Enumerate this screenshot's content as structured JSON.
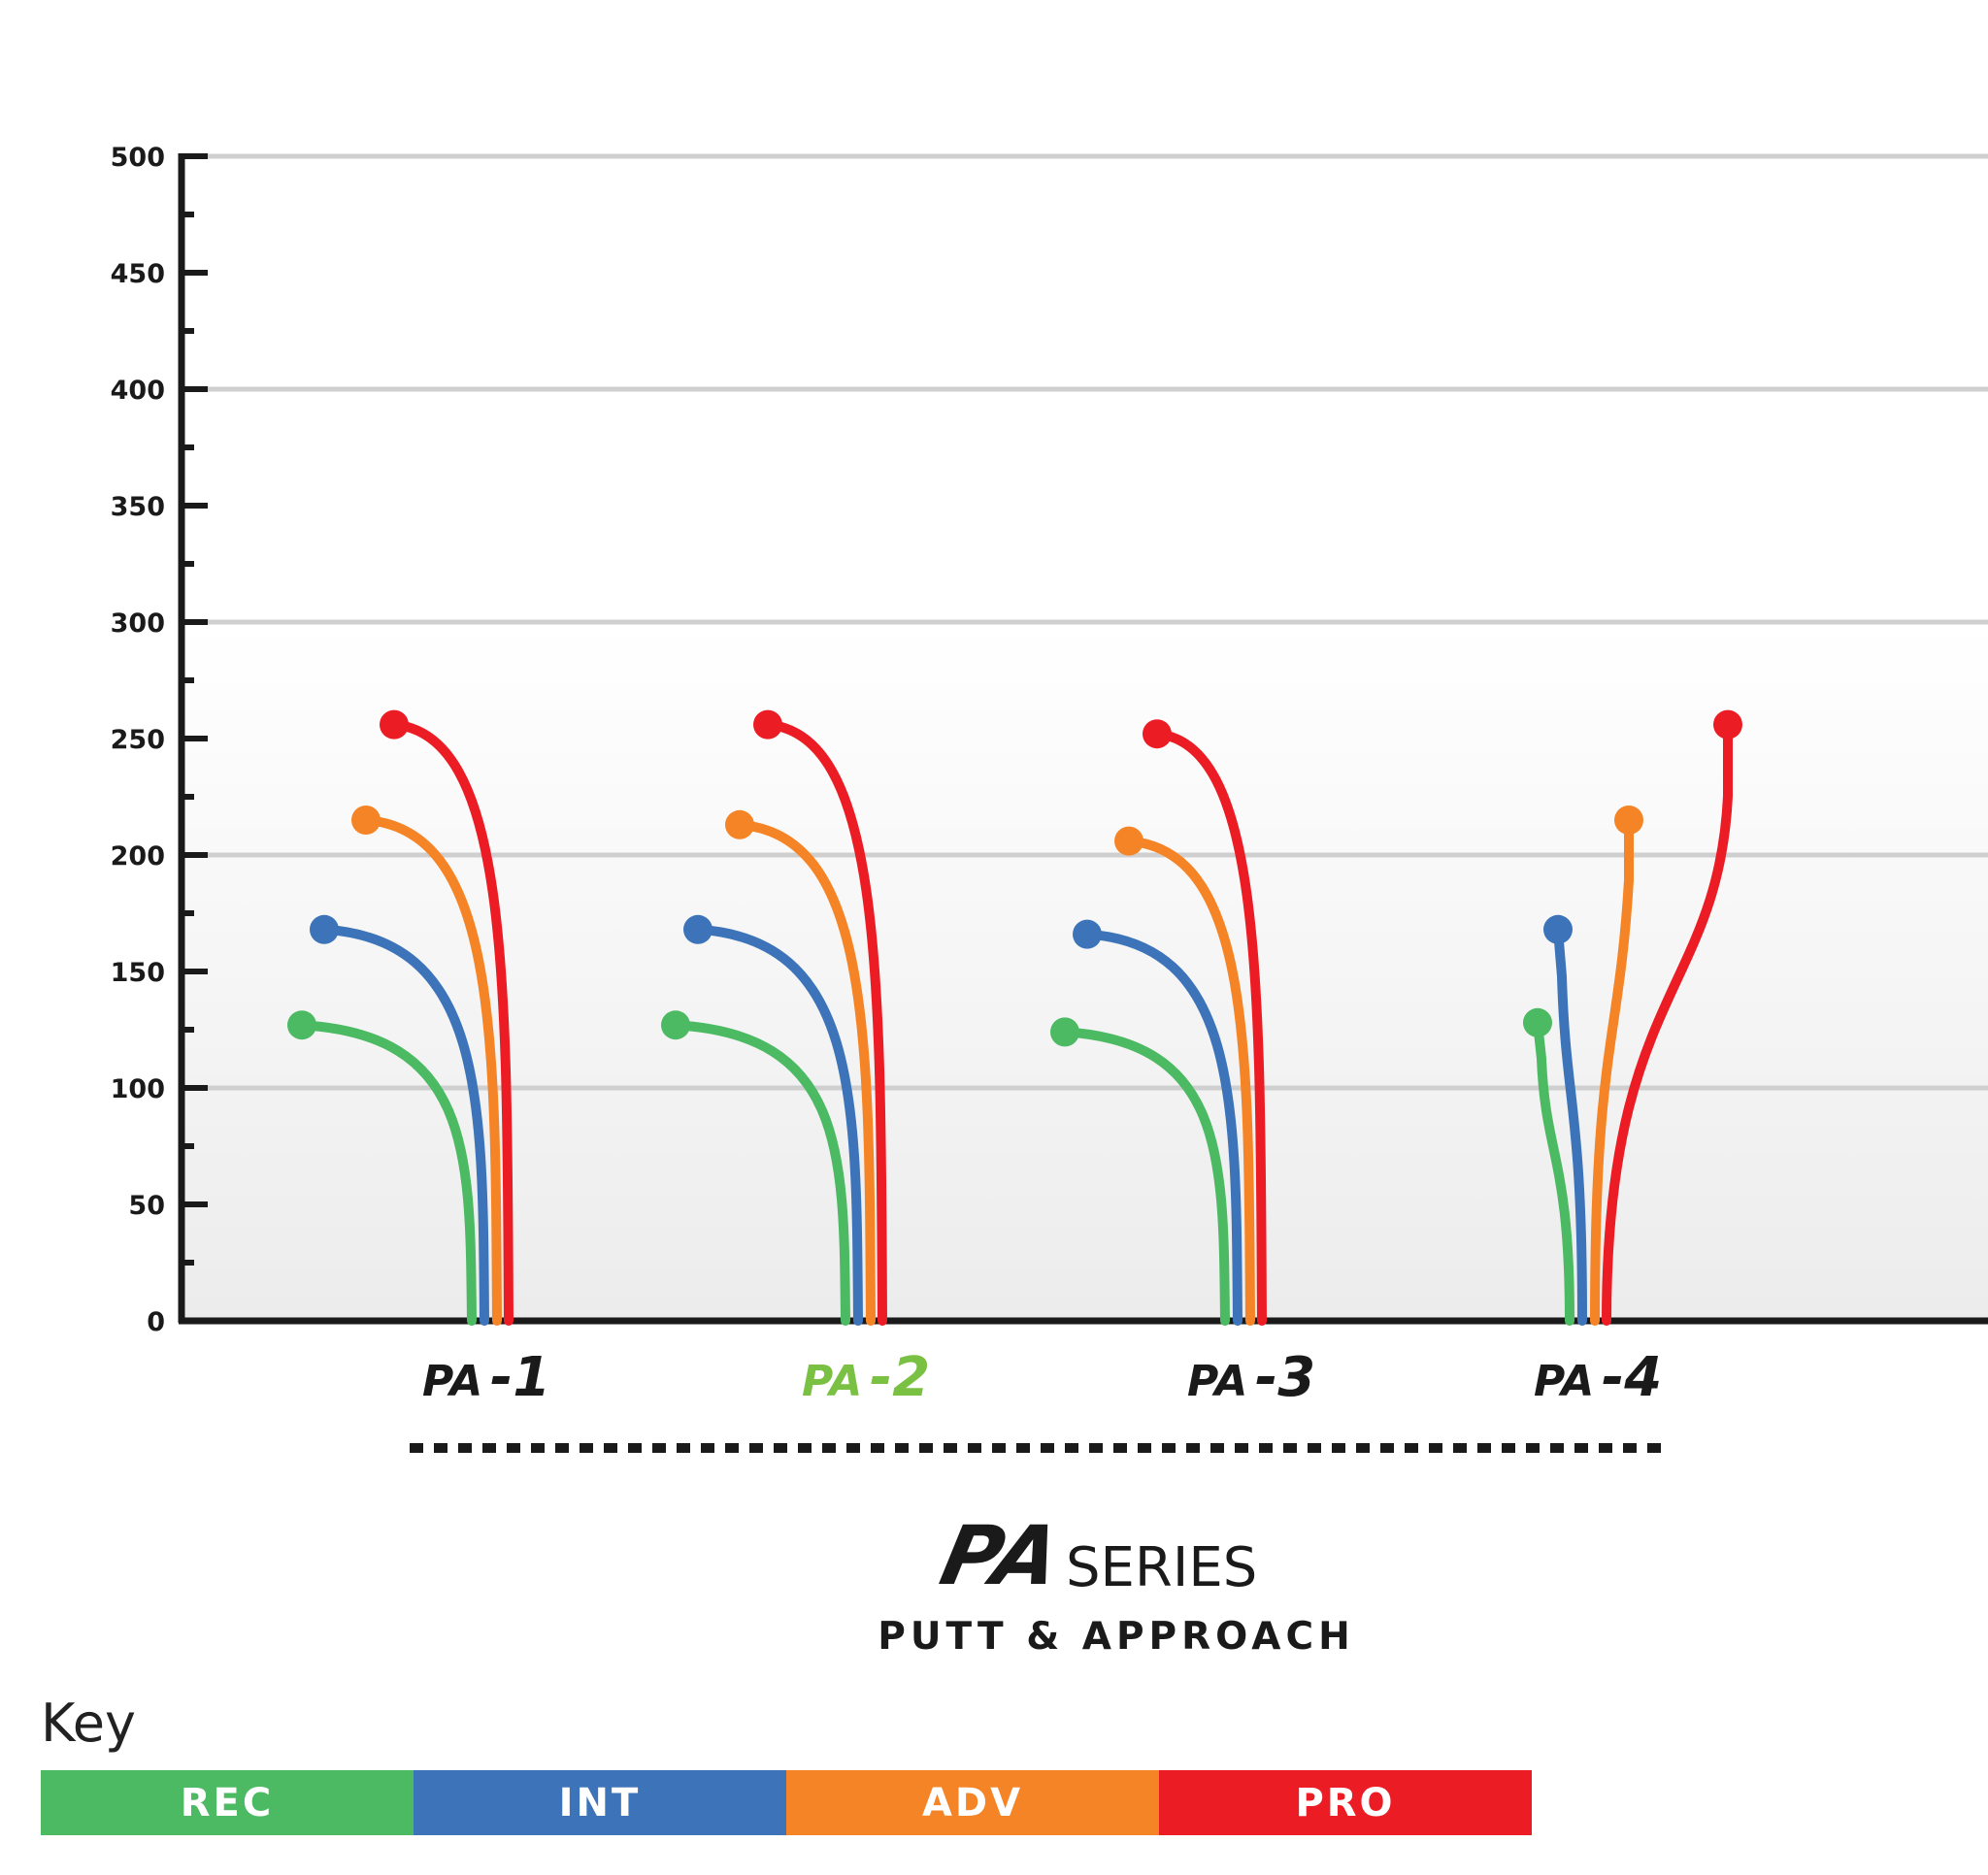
{
  "chart_data": {
    "type": "line",
    "title": "SERIES",
    "subtitle": "PUTT & APPROACH",
    "logo_text": "PA",
    "xlabel": "",
    "ylabel": "",
    "ylim": [
      0,
      500
    ],
    "y_ticks": [
      "500",
      "450",
      "400",
      "350",
      "300",
      "250",
      "200",
      "150",
      "100",
      "50",
      "0"
    ],
    "y_tick_values": [
      500,
      450,
      400,
      350,
      300,
      250,
      200,
      150,
      100,
      50,
      0
    ],
    "grid": true,
    "categories": [
      "PA-1",
      "PA-2",
      "PA-3",
      "PA-4"
    ],
    "category_labels": [
      {
        "num": "1",
        "color": "#1a1a1a"
      },
      {
        "num": "2",
        "color": "#7ac143"
      },
      {
        "num": "3",
        "color": "#1a1a1a"
      },
      {
        "num": "4",
        "color": "#1a1a1a"
      }
    ],
    "series": [
      {
        "name": "REC",
        "color": "#4cb963",
        "values": [
          127,
          127,
          124,
          128
        ]
      },
      {
        "name": "INT",
        "color": "#3d74b9",
        "values": [
          168,
          168,
          166,
          168
        ]
      },
      {
        "name": "ADV",
        "color": "#f58426",
        "values": [
          215,
          213,
          206,
          215
        ]
      },
      {
        "name": "PRO",
        "color": "#ec1c24",
        "values": [
          256,
          256,
          252,
          256
        ]
      }
    ]
  },
  "legend": {
    "title": "Key",
    "items": [
      {
        "label": "REC",
        "color": "#4cb963"
      },
      {
        "label": "INT",
        "color": "#3d74b9"
      },
      {
        "label": "ADV",
        "color": "#f58426"
      },
      {
        "label": "PRO",
        "color": "#ec1c24"
      }
    ]
  }
}
